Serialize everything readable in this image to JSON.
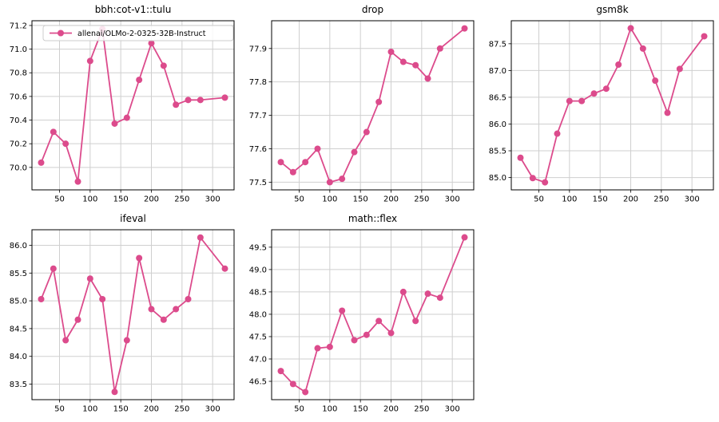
{
  "figure": {
    "background_color": "#ffffff",
    "accent_color": "#dc4b8c",
    "grid_color": "#cfcfcf",
    "spine_color": "#000000",
    "legend_label": "allenai/OLMo-2-0325-32B-Instruct"
  },
  "chart_data": [
    {
      "type": "line",
      "title": "bbh:cot-v1::tulu",
      "x": [
        20,
        40,
        60,
        80,
        100,
        120,
        140,
        160,
        180,
        200,
        220,
        240,
        260,
        280,
        320
      ],
      "series": [
        {
          "name": "allenai/OLMo-2-0325-32B-Instruct",
          "values": [
            70.04,
            70.3,
            70.2,
            69.88,
            70.9,
            71.17,
            70.37,
            70.42,
            70.74,
            71.05,
            70.86,
            70.53,
            70.57,
            70.57,
            70.59
          ]
        }
      ],
      "xlabel": "",
      "ylabel": "",
      "xlim": [
        5,
        335
      ],
      "ylim": [
        69.81,
        71.24
      ],
      "xticks": [
        50,
        100,
        150,
        200,
        250,
        300
      ],
      "yticks": [
        70.0,
        70.2,
        70.4,
        70.6,
        70.8,
        71.0,
        71.2
      ],
      "ytick_decimals": 1,
      "grid": true,
      "legend": {
        "visible": true,
        "label": "allenai/OLMo-2-0325-32B-Instruct",
        "position": "upper left"
      }
    },
    {
      "type": "line",
      "title": "drop",
      "x": [
        20,
        40,
        60,
        80,
        100,
        120,
        140,
        160,
        180,
        200,
        220,
        240,
        260,
        280,
        320
      ],
      "series": [
        {
          "name": "allenai/OLMo-2-0325-32B-Instruct",
          "values": [
            77.56,
            77.53,
            77.56,
            77.6,
            77.5,
            77.51,
            77.59,
            77.65,
            77.74,
            77.89,
            77.86,
            77.85,
            77.81,
            77.9,
            77.96
          ]
        }
      ],
      "xlabel": "",
      "ylabel": "",
      "xlim": [
        5,
        335
      ],
      "ylim": [
        77.477,
        77.983
      ],
      "xticks": [
        50,
        100,
        150,
        200,
        250,
        300
      ],
      "yticks": [
        77.5,
        77.6,
        77.7,
        77.8,
        77.9
      ],
      "ytick_decimals": 1,
      "grid": true,
      "legend": {
        "visible": false
      }
    },
    {
      "type": "line",
      "title": "gsm8k",
      "x": [
        20,
        40,
        60,
        80,
        100,
        120,
        140,
        160,
        180,
        200,
        220,
        240,
        260,
        280,
        320
      ],
      "series": [
        {
          "name": "allenai/OLMo-2-0325-32B-Instruct",
          "values": [
            85.37,
            84.99,
            84.91,
            85.82,
            86.43,
            86.43,
            86.57,
            86.66,
            87.11,
            87.79,
            87.41,
            86.81,
            86.21,
            87.03,
            87.64
          ]
        }
      ],
      "xlabel": "",
      "ylabel": "",
      "xlim": [
        5,
        335
      ],
      "ylim": [
        84.77,
        87.93
      ],
      "xticks": [
        50,
        100,
        150,
        200,
        250,
        300
      ],
      "yticks": [
        85.0,
        85.5,
        86.0,
        86.5,
        87.0,
        87.5
      ],
      "ytick_decimals": 1,
      "grid": true,
      "legend": {
        "visible": false
      }
    },
    {
      "type": "line",
      "title": "ifeval",
      "x": [
        20,
        40,
        60,
        80,
        100,
        120,
        140,
        160,
        180,
        200,
        220,
        240,
        260,
        280,
        320
      ],
      "series": [
        {
          "name": "allenai/OLMo-2-0325-32B-Instruct",
          "values": [
            85.03,
            85.58,
            84.29,
            84.66,
            85.4,
            85.03,
            83.36,
            84.29,
            85.77,
            84.85,
            84.66,
            84.85,
            85.03,
            86.14,
            85.58
          ]
        }
      ],
      "xlabel": "",
      "ylabel": "",
      "xlim": [
        5,
        335
      ],
      "ylim": [
        83.22,
        86.28
      ],
      "xticks": [
        50,
        100,
        150,
        200,
        250,
        300
      ],
      "yticks": [
        83.5,
        84.0,
        84.5,
        85.0,
        85.5,
        86.0
      ],
      "ytick_decimals": 1,
      "grid": true,
      "legend": {
        "visible": false
      }
    },
    {
      "type": "line",
      "title": "math::flex",
      "x": [
        20,
        40,
        60,
        80,
        100,
        120,
        140,
        160,
        180,
        200,
        220,
        240,
        260,
        280,
        320
      ],
      "series": [
        {
          "name": "allenai/OLMo-2-0325-32B-Instruct",
          "values": [
            46.73,
            46.44,
            46.26,
            47.24,
            47.27,
            48.08,
            47.42,
            47.54,
            47.85,
            47.58,
            48.5,
            47.85,
            48.46,
            48.37,
            49.72
          ]
        }
      ],
      "xlabel": "",
      "ylabel": "",
      "xlim": [
        5,
        335
      ],
      "ylim": [
        46.09,
        49.89
      ],
      "xticks": [
        50,
        100,
        150,
        200,
        250,
        300
      ],
      "yticks": [
        46.5,
        47.0,
        47.5,
        48.0,
        48.5,
        49.0,
        49.5
      ],
      "ytick_decimals": 1,
      "grid": true,
      "legend": {
        "visible": false
      }
    }
  ]
}
